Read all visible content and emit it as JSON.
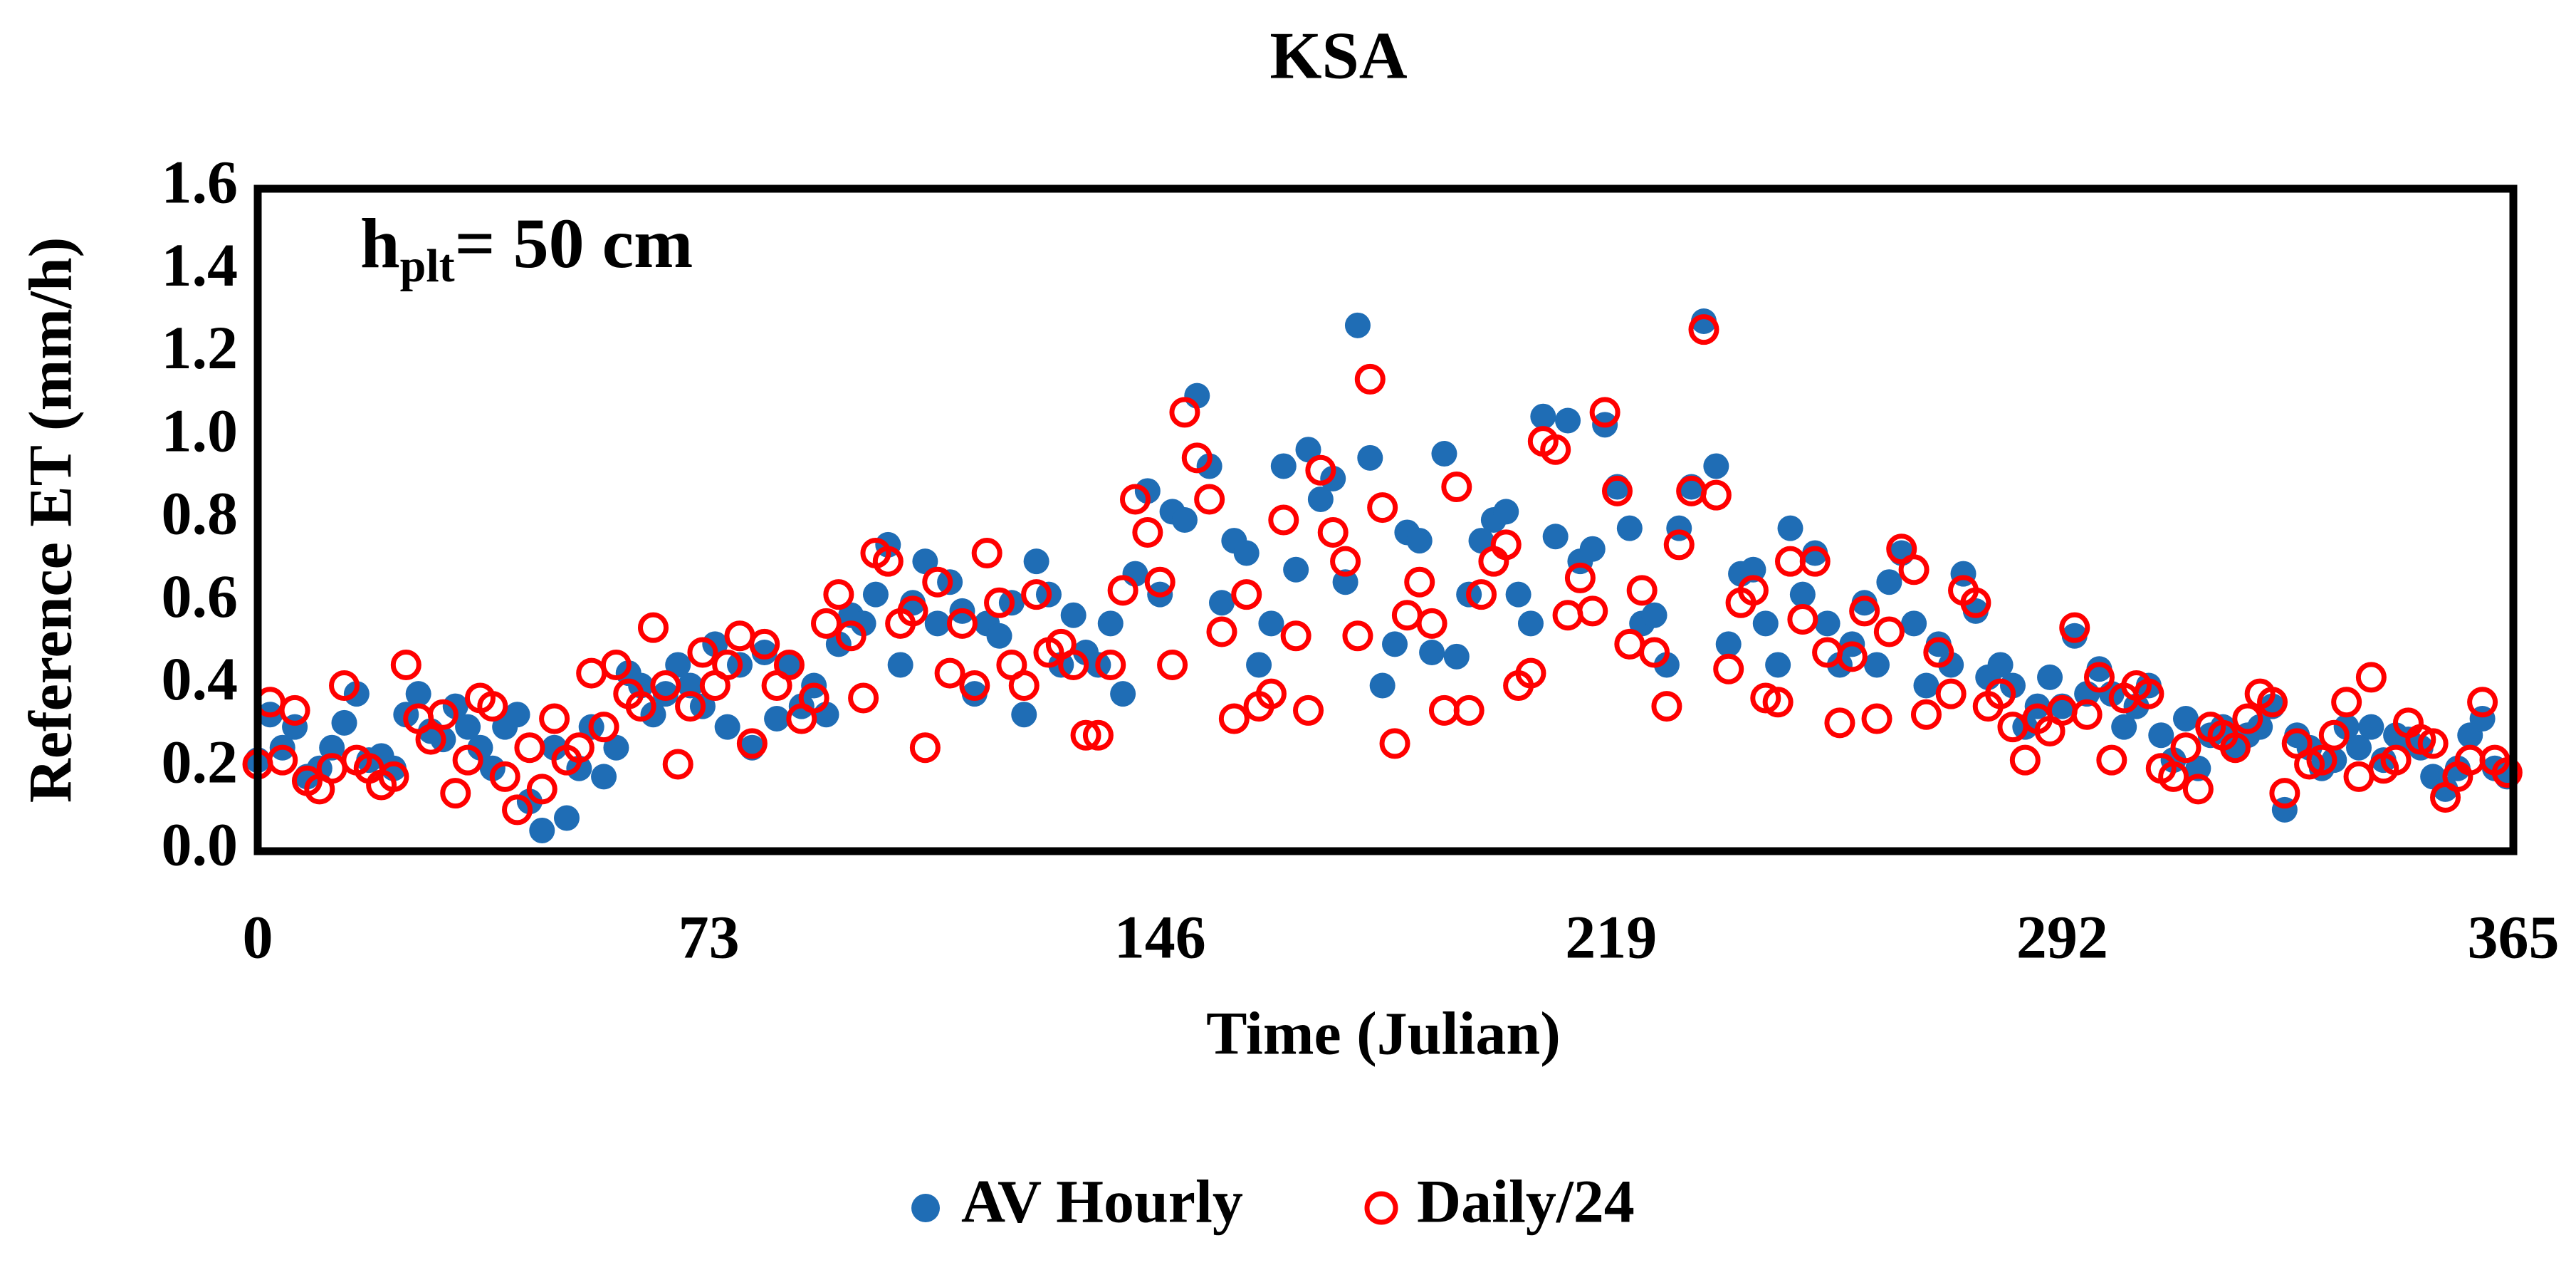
{
  "chart_data": {
    "type": "scatter",
    "title": "KSA",
    "annotation": {
      "text": "h",
      "subscript": "plt",
      "suffix": "= 50 cm"
    },
    "xlabel": "Time (Julian)",
    "ylabel": "Reference ET (mm/h)",
    "xlim": [
      0,
      365
    ],
    "xticks": [
      0,
      73,
      146,
      219,
      292,
      365
    ],
    "ylim": [
      0,
      1.6
    ],
    "yticks": [
      {
        "value": 0,
        "label": "0.0"
      },
      0.2,
      0.4,
      0.6,
      0.8,
      {
        "value": 1,
        "label": "1.0"
      },
      1.2,
      1.4,
      1.6
    ],
    "grid": false,
    "legend": "bottom",
    "x": [
      0,
      2,
      4,
      6,
      8,
      10,
      12,
      14,
      16,
      18,
      20,
      22,
      24,
      26,
      28,
      30,
      32,
      34,
      36,
      38,
      40,
      42,
      44,
      46,
      48,
      50,
      52,
      54,
      56,
      58,
      60,
      62,
      64,
      66,
      68,
      70,
      72,
      74,
      76,
      78,
      80,
      82,
      84,
      86,
      88,
      90,
      92,
      94,
      96,
      98,
      100,
      102,
      104,
      106,
      108,
      110,
      112,
      114,
      116,
      118,
      120,
      122,
      124,
      126,
      128,
      130,
      132,
      134,
      136,
      138,
      140,
      142,
      144,
      146,
      148,
      150,
      152,
      154,
      156,
      158,
      160,
      162,
      164,
      166,
      168,
      170,
      172,
      174,
      176,
      178,
      180,
      182,
      184,
      186,
      188,
      190,
      192,
      194,
      196,
      198,
      200,
      202,
      204,
      206,
      208,
      210,
      212,
      214,
      216,
      218,
      220,
      222,
      224,
      226,
      228,
      230,
      232,
      234,
      236,
      238,
      240,
      242,
      244,
      246,
      248,
      250,
      252,
      254,
      256,
      258,
      260,
      262,
      264,
      266,
      268,
      270,
      272,
      274,
      276,
      278,
      280,
      282,
      284,
      286,
      288,
      290,
      292,
      294,
      296,
      298,
      300,
      302,
      304,
      306,
      308,
      310,
      312,
      314,
      316,
      318,
      320,
      322,
      324,
      326,
      328,
      330,
      332,
      334,
      336,
      338,
      340,
      342,
      344,
      346,
      348,
      350,
      352,
      354,
      356,
      358,
      360,
      362,
      364
    ],
    "series": [
      {
        "name": "AV Hourly",
        "color": "#1f6db5",
        "marker": "filled",
        "values": [
          0.22,
          0.33,
          0.25,
          0.3,
          0.18,
          0.2,
          0.25,
          0.31,
          0.38,
          0.22,
          0.23,
          0.2,
          0.33,
          0.38,
          0.29,
          0.27,
          0.35,
          0.3,
          0.25,
          0.2,
          0.3,
          0.33,
          0.12,
          0.05,
          0.25,
          0.08,
          0.2,
          0.3,
          0.18,
          0.25,
          0.43,
          0.4,
          0.33,
          0.38,
          0.45,
          0.4,
          0.35,
          0.5,
          0.3,
          0.45,
          0.25,
          0.48,
          0.32,
          0.45,
          0.35,
          0.4,
          0.33,
          0.5,
          0.57,
          0.55,
          0.62,
          0.74,
          0.45,
          0.6,
          0.7,
          0.55,
          0.65,
          0.58,
          0.38,
          0.55,
          0.52,
          0.6,
          0.33,
          0.7,
          0.62,
          0.45,
          0.57,
          0.48,
          0.45,
          0.55,
          0.38,
          0.67,
          0.87,
          0.62,
          0.82,
          0.8,
          1.1,
          0.93,
          0.6,
          0.75,
          0.72,
          0.45,
          0.55,
          0.93,
          0.68,
          0.97,
          0.85,
          0.9,
          0.65,
          1.27,
          0.95,
          0.4,
          0.5,
          0.77,
          0.75,
          0.48,
          0.96,
          0.47,
          0.62,
          0.75,
          0.8,
          0.82,
          0.62,
          0.55,
          1.05,
          0.76,
          1.04,
          0.7,
          0.73,
          1.03,
          0.88,
          0.78,
          0.55,
          0.57,
          0.45,
          0.78,
          0.88,
          1.28,
          0.93,
          0.5,
          0.67,
          0.68,
          0.55,
          0.45,
          0.78,
          0.62,
          0.72,
          0.55,
          0.45,
          0.5,
          0.6,
          0.45,
          0.65,
          0.72,
          0.55,
          0.4,
          0.5,
          0.45,
          0.67,
          0.58,
          0.42,
          0.45,
          0.4,
          0.3,
          0.35,
          0.42,
          0.35,
          0.52,
          0.38,
          0.44,
          0.38,
          0.3,
          0.35,
          0.4,
          0.28,
          0.22,
          0.32,
          0.2,
          0.28,
          0.3,
          0.25,
          0.28,
          0.3,
          0.35,
          0.1,
          0.28,
          0.25,
          0.2,
          0.22,
          0.3,
          0.25,
          0.3,
          0.22,
          0.28,
          0.27,
          0.25,
          0.18,
          0.15,
          0.2,
          0.28,
          0.32,
          0.2,
          0.18
        ]
      },
      {
        "name": "Daily/24",
        "color": "#ff0000",
        "marker": "open",
        "values": [
          0.21,
          0.36,
          0.22,
          0.34,
          0.17,
          0.15,
          0.2,
          0.4,
          0.22,
          0.2,
          0.16,
          0.18,
          0.45,
          0.32,
          0.27,
          0.33,
          0.14,
          0.22,
          0.37,
          0.35,
          0.18,
          0.1,
          0.25,
          0.15,
          0.32,
          0.22,
          0.25,
          0.43,
          0.3,
          0.45,
          0.38,
          0.35,
          0.54,
          0.4,
          0.21,
          0.35,
          0.48,
          0.4,
          0.45,
          0.52,
          0.26,
          0.5,
          0.4,
          0.45,
          0.32,
          0.37,
          0.55,
          0.62,
          0.52,
          0.37,
          0.72,
          0.7,
          0.55,
          0.58,
          0.25,
          0.65,
          0.43,
          0.55,
          0.4,
          0.72,
          0.6,
          0.45,
          0.4,
          0.62,
          0.48,
          0.5,
          0.45,
          0.28,
          0.28,
          0.45,
          0.63,
          0.85,
          0.77,
          0.65,
          0.45,
          1.06,
          0.95,
          0.85,
          0.53,
          0.32,
          0.62,
          0.35,
          0.38,
          0.8,
          0.52,
          0.34,
          0.92,
          0.77,
          0.7,
          0.52,
          1.14,
          0.83,
          0.26,
          0.57,
          0.65,
          0.55,
          0.34,
          0.88,
          0.34,
          0.62,
          0.7,
          0.74,
          0.4,
          0.43,
          0.99,
          0.97,
          0.57,
          0.66,
          0.58,
          1.06,
          0.87,
          0.5,
          0.63,
          0.48,
          0.35,
          0.74,
          0.87,
          1.26,
          0.86,
          0.44,
          0.6,
          0.63,
          0.37,
          0.36,
          0.7,
          0.56,
          0.7,
          0.48,
          0.31,
          0.47,
          0.58,
          0.32,
          0.53,
          0.73,
          0.68,
          0.33,
          0.48,
          0.38,
          0.63,
          0.6,
          0.35,
          0.38,
          0.3,
          0.22,
          0.32,
          0.29,
          0.34,
          0.54,
          0.33,
          0.42,
          0.22,
          0.37,
          0.4,
          0.38,
          0.2,
          0.18,
          0.25,
          0.15,
          0.3,
          0.28,
          0.25,
          0.32,
          0.38,
          0.36,
          0.14,
          0.26,
          0.21,
          0.22,
          0.28,
          0.36,
          0.18,
          0.42,
          0.2,
          0.22,
          0.31,
          0.27,
          0.26,
          0.13,
          0.18,
          0.22,
          0.36,
          0.22,
          0.19
        ]
      }
    ]
  }
}
